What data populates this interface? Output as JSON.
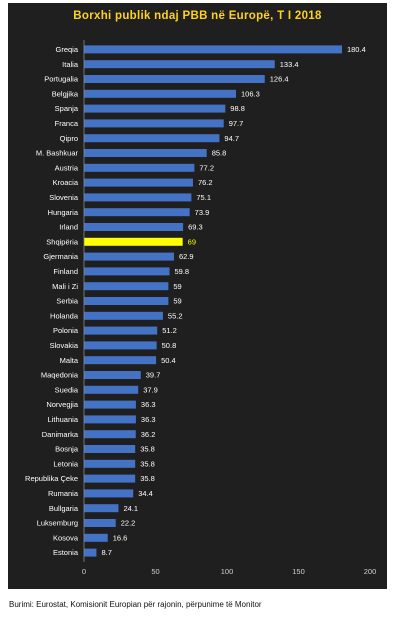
{
  "chart_data": {
    "type": "bar",
    "orientation": "horizontal",
    "title": "Borxhi publik ndaj PBB në Europë, T I 2018",
    "categories": [
      "Greqia",
      "Italia",
      "Portugalia",
      "Belgjika",
      "Spanja",
      "Franca",
      "Qipro",
      "M. Bashkuar",
      "Austria",
      "Kroacia",
      "Slovenia",
      "Hungaria",
      "Irland",
      "Shqipëria",
      "Gjermania",
      "Finland",
      "Mali i Zi",
      "Serbia",
      "Holanda",
      "Polonia",
      "Slovakia",
      "Malta",
      "Maqedonia",
      "Suedia",
      "Norvegjia",
      "Lithuania",
      "Danimarka",
      "Bosnja",
      "Letonia",
      "Republika Çeke",
      "Rumania",
      "Bullgaria",
      "Luksemburg",
      "Kosova",
      "Estonia"
    ],
    "values": [
      180.4,
      133.4,
      126.4,
      106.3,
      98.8,
      97.7,
      94.7,
      85.8,
      77.2,
      76.2,
      75.1,
      73.9,
      69.3,
      69,
      62.9,
      59.8,
      59,
      59,
      55.2,
      51.2,
      50.8,
      50.4,
      39.7,
      37.9,
      36.3,
      36.3,
      36.2,
      35.8,
      35.8,
      35.8,
      34.4,
      24.1,
      22.2,
      16.6,
      8.7
    ],
    "value_labels": [
      "180.4",
      "133.4",
      "126.4",
      "106.3",
      "98.8",
      "97.7",
      "94.7",
      "85.8",
      "77.2",
      "76.2",
      "75.1",
      "73.9",
      "69.3",
      "69",
      "62.9",
      "59.8",
      "59",
      "59",
      "55.2",
      "51.2",
      "50.8",
      "50.4",
      "39.7",
      "37.9",
      "36.3",
      "36.3",
      "36.2",
      "35.8",
      "35.8",
      "35.8",
      "34.4",
      "24.1",
      "22.2",
      "16.6",
      "8.7"
    ],
    "highlight_category": "Shqipëria",
    "xlim": [
      0,
      200
    ],
    "xticks": [
      0,
      50,
      100,
      150,
      200
    ],
    "xtick_labels": [
      "0",
      "50",
      "100",
      "150",
      "200"
    ],
    "grid": false,
    "legend": "none",
    "colors": {
      "background": "#1f1f1f",
      "bar": "#4472c4",
      "highlight": "#ffff00",
      "title": "#ffd21f",
      "label": "#ffffff",
      "highlight_label": "#ffff00"
    }
  },
  "source_note": "Burimi: Eurostat, Komisionit Europian për rajonin, përpunime të Monitor"
}
